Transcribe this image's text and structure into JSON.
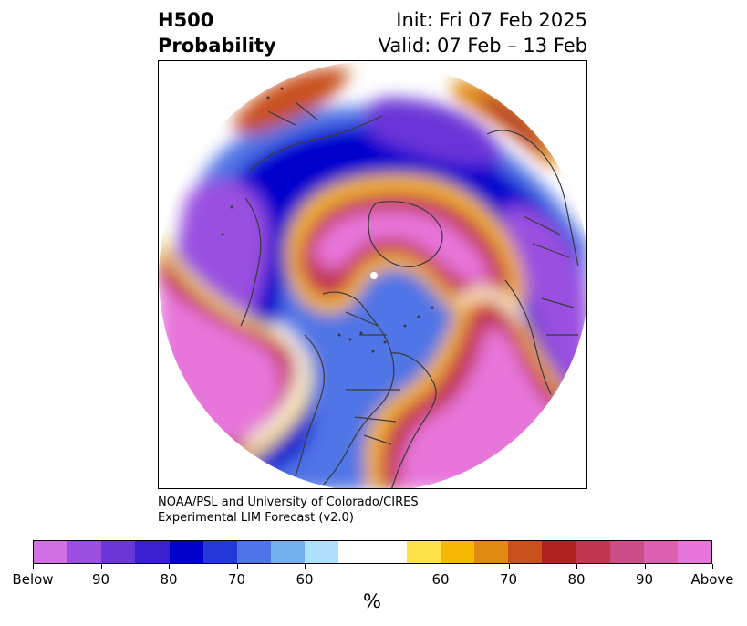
{
  "header": {
    "title_line1": "H500",
    "title_line2": "Probability",
    "init": "Init: Fri 07 Feb 2025",
    "valid": "Valid: 07 Feb – 13 Feb"
  },
  "credit": {
    "line1": "NOAA/PSL and University of Colorado/CIRES",
    "line2": "Experimental LIM Forecast (v2.0)"
  },
  "colorbar": {
    "colors": [
      "#d36fe4",
      "#9a4fe0",
      "#6a36d8",
      "#3a1fd0",
      "#0000cd",
      "#2438da",
      "#4f74e6",
      "#74aff0",
      "#aee0fb",
      "#ffffff",
      "#ffffff",
      "#fde24a",
      "#f5b700",
      "#e08a12",
      "#c8501a",
      "#b0211e",
      "#c23650",
      "#cc4c88",
      "#dd60b0",
      "#e776db"
    ],
    "tick_labels": [
      "Below",
      "90",
      "80",
      "70",
      "60",
      "60",
      "70",
      "80",
      "90",
      "Above"
    ],
    "unit": "%"
  },
  "map": {
    "projection": "north-polar-stereographic",
    "variable": "500 hPa geopotential height probability",
    "features": [
      "coastlines",
      "country-borders",
      "us-state-borders",
      "canada-province-borders"
    ]
  }
}
